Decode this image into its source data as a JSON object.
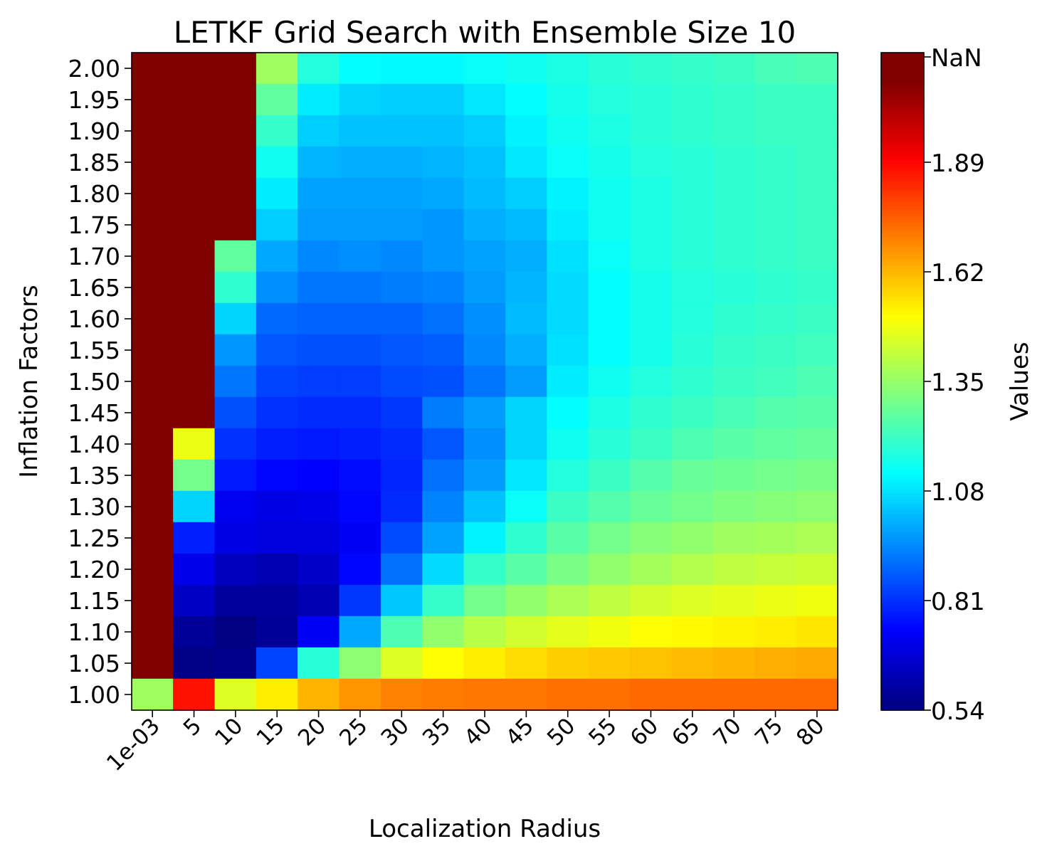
{
  "chart_data": {
    "type": "heatmap",
    "title": "LETKF Grid Search with Ensemble Size 10",
    "xlabel": "Localization Radius",
    "ylabel": "Inflation Factors",
    "x_tick_labels": [
      "1e-03",
      "5",
      "10",
      "15",
      "20",
      "25",
      "30",
      "35",
      "40",
      "45",
      "50",
      "55",
      "60",
      "65",
      "70",
      "75",
      "80"
    ],
    "y_tick_labels": [
      "2.00",
      "1.95",
      "1.90",
      "1.85",
      "1.80",
      "1.75",
      "1.70",
      "1.65",
      "1.60",
      "1.55",
      "1.50",
      "1.45",
      "1.40",
      "1.35",
      "1.30",
      "1.25",
      "1.20",
      "1.15",
      "1.10",
      "1.05",
      "1.00"
    ],
    "colorbar": {
      "label": "Values",
      "colormap": "jet",
      "vmin": 0.54,
      "vmax": 2.16,
      "nan_color": "#800000",
      "tick_values": [
        0.54,
        0.81,
        1.08,
        1.35,
        1.62,
        1.89
      ],
      "tick_labels": [
        "0.54",
        "0.81",
        "1.08",
        "1.35",
        "1.62",
        "1.89",
        "NaN"
      ]
    },
    "values": [
      [
        null,
        null,
        null,
        1.4,
        1.2,
        1.15,
        1.14,
        1.14,
        1.16,
        1.17,
        1.19,
        1.21,
        1.22,
        1.23,
        1.24,
        1.26,
        1.27
      ],
      [
        null,
        null,
        null,
        1.3,
        1.12,
        1.08,
        1.07,
        1.07,
        1.11,
        1.15,
        1.18,
        1.2,
        1.21,
        1.22,
        1.23,
        1.24,
        1.24
      ],
      [
        null,
        null,
        null,
        1.23,
        1.07,
        1.05,
        1.05,
        1.05,
        1.07,
        1.13,
        1.17,
        1.19,
        1.21,
        1.22,
        1.23,
        1.24,
        1.24
      ],
      [
        null,
        null,
        null,
        1.17,
        1.03,
        1.02,
        1.02,
        1.03,
        1.05,
        1.11,
        1.16,
        1.18,
        1.2,
        1.21,
        1.22,
        1.23,
        1.24
      ],
      [
        null,
        null,
        null,
        1.12,
        1.0,
        1.0,
        1.0,
        1.01,
        1.04,
        1.07,
        1.13,
        1.17,
        1.19,
        1.21,
        1.22,
        1.23,
        1.24
      ],
      [
        null,
        null,
        null,
        1.07,
        0.99,
        0.99,
        0.99,
        0.98,
        1.02,
        1.04,
        1.12,
        1.17,
        1.19,
        1.21,
        1.22,
        1.23,
        1.24
      ],
      [
        null,
        null,
        1.3,
        1.01,
        0.96,
        0.97,
        0.96,
        0.98,
        1.0,
        1.02,
        1.1,
        1.16,
        1.19,
        1.21,
        1.22,
        1.23,
        1.24
      ],
      [
        null,
        null,
        1.22,
        0.97,
        0.93,
        0.93,
        0.94,
        0.95,
        0.99,
        1.03,
        1.09,
        1.15,
        1.18,
        1.2,
        1.21,
        1.22,
        1.23
      ],
      [
        null,
        null,
        1.08,
        0.91,
        0.9,
        0.9,
        0.9,
        0.92,
        0.97,
        1.04,
        1.09,
        1.15,
        1.18,
        1.2,
        1.22,
        1.23,
        1.24
      ],
      [
        null,
        null,
        0.98,
        0.88,
        0.87,
        0.87,
        0.88,
        0.89,
        0.96,
        1.02,
        1.1,
        1.15,
        1.18,
        1.21,
        1.23,
        1.24,
        1.25
      ],
      [
        null,
        null,
        0.93,
        0.85,
        0.84,
        0.84,
        0.86,
        0.87,
        0.93,
        0.99,
        1.12,
        1.17,
        1.2,
        1.22,
        1.24,
        1.25,
        1.27
      ],
      [
        null,
        null,
        0.87,
        0.82,
        0.81,
        0.81,
        0.83,
        0.94,
        0.99,
        1.08,
        1.15,
        1.19,
        1.22,
        1.24,
        1.26,
        1.28,
        1.29
      ],
      [
        null,
        1.52,
        0.82,
        0.79,
        0.78,
        0.79,
        0.81,
        0.88,
        0.97,
        1.08,
        1.17,
        1.21,
        1.24,
        1.27,
        1.29,
        1.3,
        1.31
      ],
      [
        null,
        1.33,
        0.78,
        0.75,
        0.74,
        0.76,
        0.8,
        0.92,
        0.99,
        1.11,
        1.2,
        1.24,
        1.28,
        1.31,
        1.32,
        1.33,
        1.34
      ],
      [
        null,
        1.08,
        0.72,
        0.7,
        0.71,
        0.75,
        0.81,
        0.95,
        1.05,
        1.16,
        1.24,
        1.28,
        1.31,
        1.33,
        1.35,
        1.36,
        1.37
      ],
      [
        null,
        0.79,
        0.7,
        0.69,
        0.69,
        0.73,
        0.86,
        1.0,
        1.13,
        1.22,
        1.29,
        1.33,
        1.36,
        1.38,
        1.4,
        1.41,
        1.42
      ],
      [
        null,
        0.71,
        0.64,
        0.62,
        0.66,
        0.75,
        0.92,
        1.09,
        1.23,
        1.29,
        1.34,
        1.38,
        1.41,
        1.43,
        1.45,
        1.46,
        1.47
      ],
      [
        null,
        0.65,
        0.59,
        0.59,
        0.62,
        0.83,
        1.06,
        1.23,
        1.33,
        1.38,
        1.42,
        1.45,
        1.48,
        1.5,
        1.51,
        1.52,
        1.53
      ],
      [
        null,
        0.58,
        0.54,
        0.58,
        0.73,
        1.01,
        1.27,
        1.38,
        1.44,
        1.48,
        1.51,
        1.53,
        1.55,
        1.56,
        1.57,
        1.58,
        1.59
      ],
      [
        null,
        0.55,
        0.56,
        0.85,
        1.21,
        1.37,
        1.5,
        1.55,
        1.58,
        1.61,
        1.63,
        1.64,
        1.65,
        1.66,
        1.67,
        1.68,
        1.69
      ],
      [
        1.4,
        1.93,
        1.5,
        1.58,
        1.67,
        1.72,
        1.75,
        1.76,
        1.77,
        1.77,
        1.78,
        1.78,
        1.79,
        1.79,
        1.79,
        1.79,
        1.79
      ]
    ]
  }
}
